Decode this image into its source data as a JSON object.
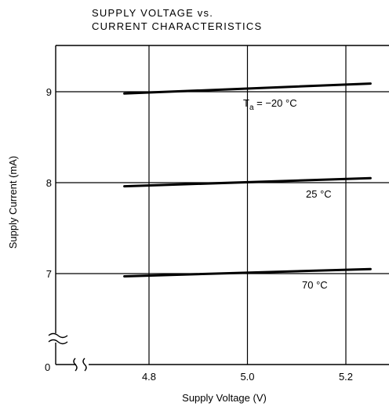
{
  "chart_data": {
    "type": "line",
    "title_lines": [
      "SUPPLY VOLTAGE vs.",
      "CURRENT CHARACTERISTICS"
    ],
    "xlabel": "Supply Voltage (V)",
    "ylabel": "Supply Current (mA)",
    "xlim": [
      4.6,
      5.3
    ],
    "ylim": [
      6.0,
      9.6
    ],
    "axis_break": "both",
    "origin_label": "0",
    "grid": true,
    "x_ticks": [
      {
        "value": 4.8,
        "label": "4.8"
      },
      {
        "value": 5.0,
        "label": "5.0"
      },
      {
        "value": 5.2,
        "label": "5.2"
      }
    ],
    "y_ticks": [
      {
        "value": 7,
        "label": "7"
      },
      {
        "value": 8,
        "label": "8"
      },
      {
        "value": 9,
        "label": "9"
      }
    ],
    "series": [
      {
        "name": "Ta = −20 °C",
        "label_main": "T",
        "label_sub": "a",
        "label_rest": " = −20 °C",
        "x": [
          4.75,
          5.25
        ],
        "y": [
          8.98,
          9.09
        ]
      },
      {
        "name": "25 °C",
        "label_main": "25 °C",
        "label_sub": "",
        "label_rest": "",
        "x": [
          4.75,
          5.25
        ],
        "y": [
          7.96,
          8.05
        ]
      },
      {
        "name": "70 °C",
        "label_main": "70 °C",
        "label_sub": "",
        "label_rest": "",
        "x": [
          4.75,
          5.25
        ],
        "y": [
          6.97,
          7.05
        ]
      }
    ]
  }
}
